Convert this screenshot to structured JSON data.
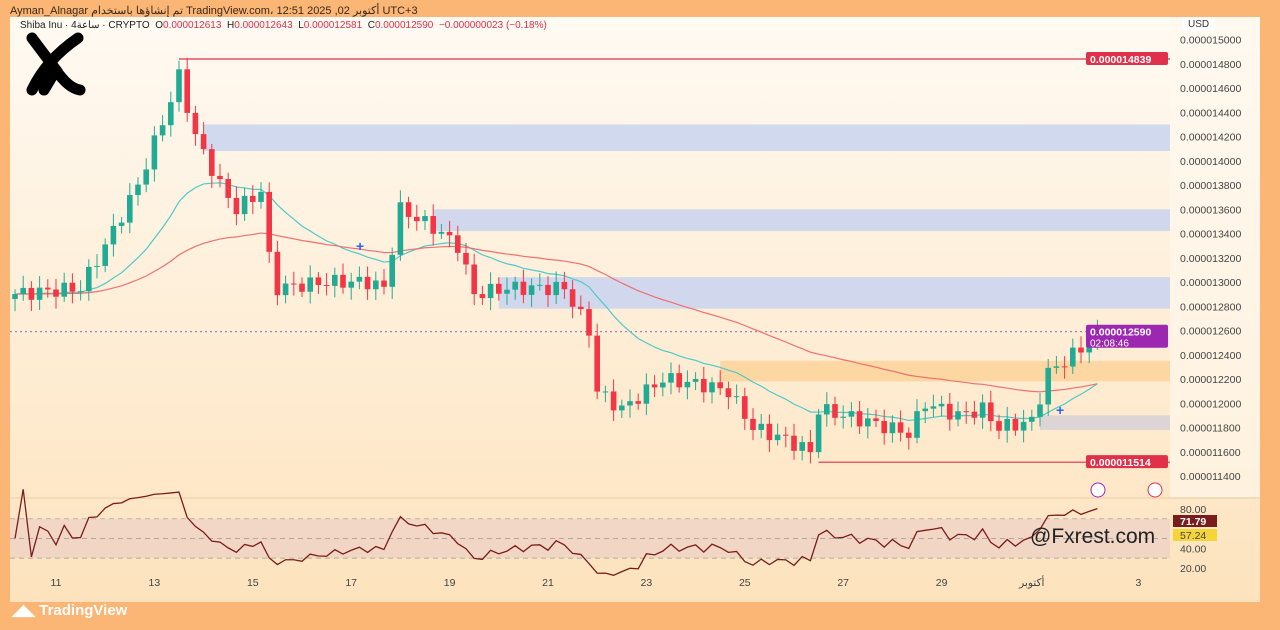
{
  "header": {
    "attribution": "Ayman_Alnagar تم إنشاؤها باستخدام TradingView.com، 12:51 2025 ,02 أكتوبر UTC+3"
  },
  "legend": {
    "symbol": "Shiba Inu · 4ساعة · CRYPTO",
    "o_label": "O",
    "o": "0.000012613",
    "h_label": "H",
    "h": "0.000012643",
    "l_label": "L",
    "l": "0.000012581",
    "c_label": "C",
    "c": "0.000012590",
    "change": "−0.000000023 (−0.18%)"
  },
  "currency": "USD",
  "price_tag": {
    "price": "0.000012590",
    "countdown": "02:08:46"
  },
  "levels": {
    "high": "0.000014839",
    "low": "0.000011514"
  },
  "rsi": {
    "value": "71.79",
    "ma": "57.24"
  },
  "watermark": "@Fxrest.com",
  "brand": "TradingView",
  "colors": {
    "up": "#22ab94",
    "down": "#f23645",
    "ema_fast": "#4fc9c9",
    "ema_slow": "#f07070",
    "zone_blue": "#c9d3f0",
    "zone_orange": "#fdd49a",
    "level": "#e0304a",
    "tag": "#9c27b0"
  },
  "chart_data": {
    "type": "candlestick",
    "price_unit": "1e-9 USD",
    "ylim": [
      11300,
      15050
    ],
    "yticks": [
      15000,
      14800,
      14600,
      14400,
      14200,
      14000,
      13800,
      13600,
      13400,
      13200,
      13000,
      12800,
      12600,
      12400,
      12200,
      12000,
      11800,
      11600,
      11400
    ],
    "ytick_labels": [
      "0.000015000",
      "0.000014800",
      "0.000014600",
      "0.000014400",
      "0.000014200",
      "0.000014000",
      "0.000013800",
      "0.000013600",
      "0.000013400",
      "0.000013200",
      "0.000013000",
      "0.000012800",
      "0.000012600",
      "0.000012400",
      "0.000012200",
      "0.000012000",
      "0.000011800",
      "0.000011600",
      "0.000011400"
    ],
    "xticks": [
      {
        "i": 5,
        "label": "11"
      },
      {
        "i": 17,
        "label": "13"
      },
      {
        "i": 29,
        "label": "15"
      },
      {
        "i": 41,
        "label": "17"
      },
      {
        "i": 53,
        "label": "19"
      },
      {
        "i": 65,
        "label": "21"
      },
      {
        "i": 77,
        "label": "23"
      },
      {
        "i": 89,
        "label": "25"
      },
      {
        "i": 101,
        "label": "27"
      },
      {
        "i": 113,
        "label": "29"
      },
      {
        "i": 124,
        "label": "أكتوبر"
      },
      {
        "i": 137,
        "label": "3"
      }
    ],
    "close_anchors": [
      [
        0,
        12900
      ],
      [
        8,
        12950
      ],
      [
        11,
        13300
      ],
      [
        15,
        13800
      ],
      [
        19,
        14500
      ],
      [
        20,
        14700
      ],
      [
        22,
        14200
      ],
      [
        25,
        13800
      ],
      [
        27,
        13600
      ],
      [
        30,
        13750
      ],
      [
        31,
        13200
      ],
      [
        32,
        12950
      ],
      [
        38,
        13000
      ],
      [
        43,
        13000
      ],
      [
        45,
        12950
      ],
      [
        47,
        13600
      ],
      [
        51,
        13450
      ],
      [
        54,
        13300
      ],
      [
        56,
        12900
      ],
      [
        60,
        12950
      ],
      [
        67,
        12950
      ],
      [
        70,
        12600
      ],
      [
        71,
        12100
      ],
      [
        74,
        11950
      ],
      [
        79,
        12200
      ],
      [
        84,
        12150
      ],
      [
        87,
        12100
      ],
      [
        90,
        11800
      ],
      [
        94,
        11700
      ],
      [
        97,
        11600
      ],
      [
        98,
        11950
      ],
      [
        104,
        11850
      ],
      [
        109,
        11750
      ],
      [
        111,
        12000
      ],
      [
        115,
        11900
      ],
      [
        118,
        11950
      ],
      [
        120,
        11800
      ],
      [
        124,
        11850
      ],
      [
        126,
        12250
      ],
      [
        130,
        12450
      ],
      [
        132,
        12590
      ]
    ],
    "zones": [
      {
        "from": 23,
        "top": 14300,
        "bottom": 14080,
        "kind": "blue"
      },
      {
        "from": 51,
        "top": 13600,
        "bottom": 13420,
        "kind": "blue"
      },
      {
        "from": 59,
        "top": 13040,
        "bottom": 12780,
        "kind": "blue"
      },
      {
        "from": 86,
        "top": 12350,
        "bottom": 12180,
        "kind": "orange"
      },
      {
        "from": 125,
        "top": 11900,
        "bottom": 11780,
        "kind": "gray"
      }
    ],
    "hlines": [
      {
        "from": 20,
        "price": 14839
      },
      {
        "from": 98,
        "price": 11514
      }
    ],
    "rsi_ticks": [
      80,
      40,
      20
    ],
    "rsi_tick_labels": [
      "80.00",
      "40.00",
      "20.00"
    ]
  }
}
